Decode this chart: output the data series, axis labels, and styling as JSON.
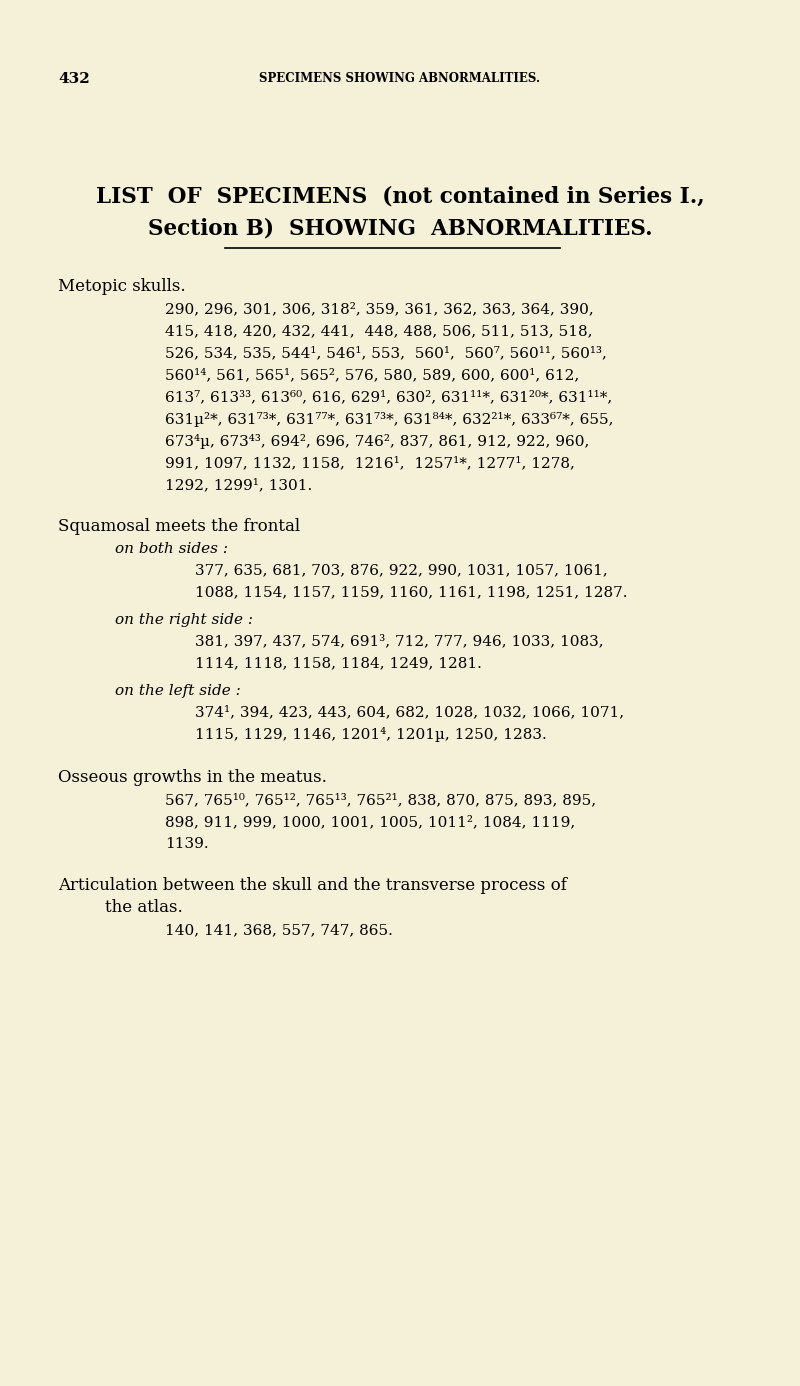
{
  "bg_color": "#f5f0d8",
  "page_number": "432",
  "header": "SPECIMENS SHOWING ABNORMALITIES.",
  "title_line1": "LIST  OF  SPECIMENS  (not contained in Series I.,",
  "title_line2": "Section B)  SHOWING  ABNORMALITIES.",
  "sections": [
    {
      "type": "section",
      "heading": "Metopic skulls.",
      "paragraphs": [
        "290, 296, 301, 306, 318², 359, 361, 362, 363, 364, 390,",
        "415, 418, 420, 432, 441,  448, 488, 506, 511, 513, 518,",
        "526, 534, 535, 544¹, 546¹, 553,  560¹,  560⁷, 560¹¹, 560¹³,",
        "560¹⁴, 561, 565¹, 565², 576, 580, 589, 600, 600¹, 612,",
        "613⁷, 613³³, 613⁶⁰, 616, 629¹, 630², 631¹¹*, 631²⁰*, 631¹¹*,",
        "631µ²*, 631⁷³*, 631⁷⁷*, 631⁷³*, 631⁸⁴*, 632²¹*, 633⁶⁷*, 655,",
        "673⁴µ, 673⁴³, 694², 696, 746², 837, 861, 912, 922, 960,",
        "991, 1097, 1132, 1158,  1216¹,  1257¹*, 1277¹, 1278,",
        "1292, 1299¹, 1301."
      ]
    },
    {
      "type": "section_with_subs",
      "heading": "Squamosal meets the frontal",
      "subheadings": [
        {
          "label": "on both sides :",
          "paragraphs": [
            "377, 635, 681, 703, 876, 922, 990, 1031, 1057, 1061,",
            "1088, 1154, 1157, 1159, 1160, 1161, 1198, 1251, 1287."
          ]
        },
        {
          "label": "on the right side :",
          "paragraphs": [
            "381, 397, 437, 574, 691³, 712, 777, 946, 1033, 1083,",
            "1114, 1118, 1158, 1184, 1249, 1281."
          ]
        },
        {
          "label": "on the left side :",
          "paragraphs": [
            "374¹, 394, 423, 443, 604, 682, 1028, 1032, 1066, 1071,",
            "1115, 1129, 1146, 1201⁴, 1201µ, 1250, 1283."
          ]
        }
      ]
    },
    {
      "type": "section",
      "heading": "Osseous growths in the meatus.",
      "paragraphs": [
        "567, 765¹⁰, 765¹², 765¹³, 765²¹, 838, 870, 875, 893, 895,",
        "898, 911, 999, 1000, 1001, 1005, 1011², 1084, 1119,",
        "1139."
      ]
    },
    {
      "type": "section_wrap",
      "heading": "Articulation between the skull and the transverse process of",
      "heading_cont": "the atlas.",
      "paragraphs": [
        "140, 141, 368, 557, 747, 865."
      ]
    }
  ]
}
